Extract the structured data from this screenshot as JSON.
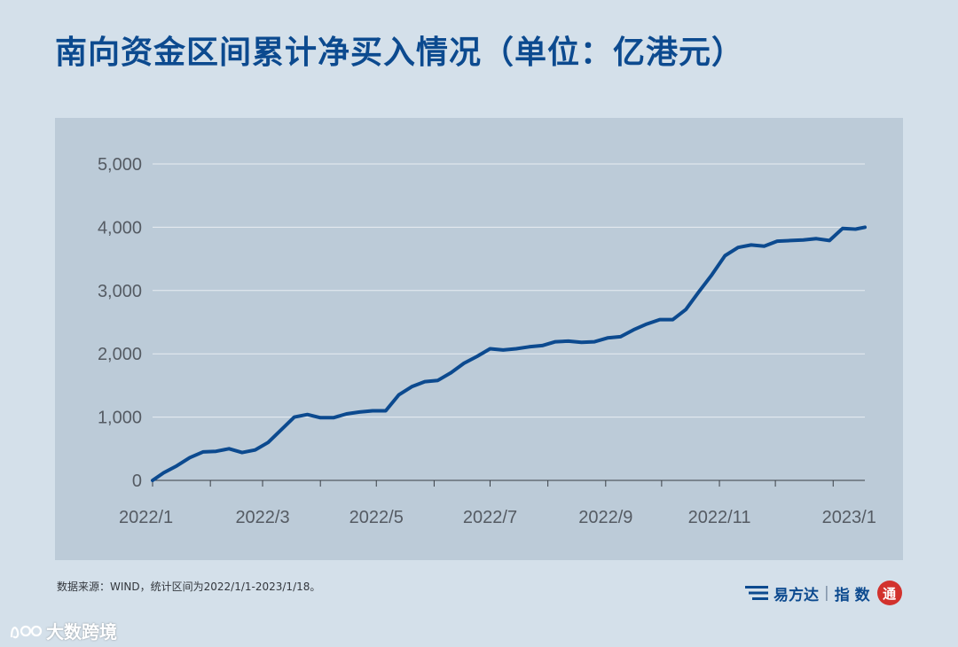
{
  "header": {
    "title": "南向资金区间累计净买入情况（单位：亿港元）"
  },
  "chart_data": {
    "type": "line",
    "title": "南向资金区间累计净买入情况（单位：亿港元）",
    "xlabel": "",
    "ylabel": "",
    "ylim": [
      0,
      5000
    ],
    "yticks": [
      0,
      1000,
      2000,
      3000,
      4000,
      5000
    ],
    "ytick_labels": [
      "0",
      "1,000",
      "2,000",
      "3,000",
      "4,000",
      "5,000"
    ],
    "xtick_labels": [
      "2022/1",
      "2022/3",
      "2022/5",
      "2022/7",
      "2022/9",
      "2022/11",
      "2023/1"
    ],
    "grid": true,
    "legend": "none",
    "line_color": "#0c4a8f",
    "series": [
      {
        "x": [
          "2022-01-01",
          "2022-01-07",
          "2022-01-14",
          "2022-01-21",
          "2022-01-28",
          "2022-02-04",
          "2022-02-11",
          "2022-02-18",
          "2022-02-25",
          "2022-03-04",
          "2022-03-11",
          "2022-03-18",
          "2022-03-25",
          "2022-04-01",
          "2022-04-08",
          "2022-04-15",
          "2022-04-22",
          "2022-04-29",
          "2022-05-06",
          "2022-05-13",
          "2022-05-20",
          "2022-05-27",
          "2022-06-03",
          "2022-06-10",
          "2022-06-17",
          "2022-06-24",
          "2022-07-01",
          "2022-07-08",
          "2022-07-15",
          "2022-07-22",
          "2022-07-29",
          "2022-08-05",
          "2022-08-12",
          "2022-08-19",
          "2022-08-26",
          "2022-09-02",
          "2022-09-09",
          "2022-09-16",
          "2022-09-23",
          "2022-09-30",
          "2022-10-07",
          "2022-10-14",
          "2022-10-21",
          "2022-10-28",
          "2022-11-04",
          "2022-11-11",
          "2022-11-18",
          "2022-11-25",
          "2022-12-02",
          "2022-12-09",
          "2022-12-16",
          "2022-12-23",
          "2022-12-30",
          "2023-01-06",
          "2023-01-13",
          "2023-01-18"
        ],
        "values": [
          0,
          120,
          230,
          360,
          450,
          460,
          500,
          440,
          480,
          600,
          800,
          1000,
          1040,
          990,
          990,
          1050,
          1080,
          1100,
          1100,
          1350,
          1480,
          1560,
          1580,
          1700,
          1850,
          1960,
          2080,
          2060,
          2080,
          2110,
          2130,
          2190,
          2200,
          2180,
          2190,
          2250,
          2270,
          2380,
          2470,
          2540,
          2540,
          2700,
          2980,
          3250,
          3550,
          3680,
          3720,
          3700,
          3780,
          3790,
          3800,
          3820,
          3790,
          3980,
          3970,
          4000
        ]
      }
    ]
  },
  "footer": {
    "source": "数据来源：WIND，统计区间为2022/1/1-2023/1/18。",
    "brand_name": "易方达",
    "brand_separator": "|",
    "brand_sub": "指 数",
    "brand_seal": "通"
  },
  "watermark": {
    "text": "大数跨境"
  }
}
